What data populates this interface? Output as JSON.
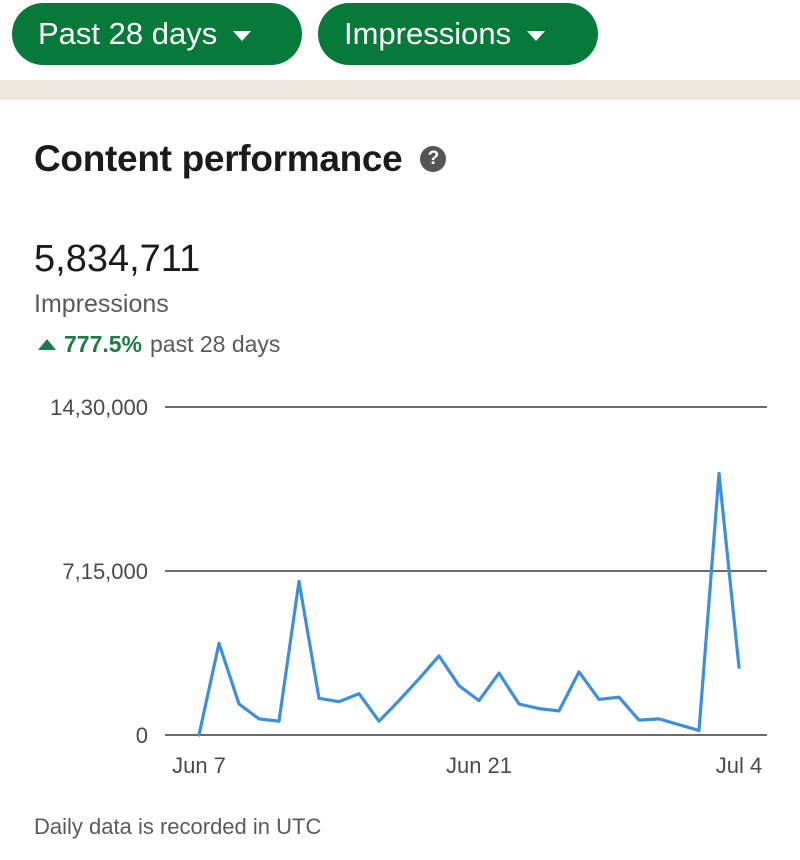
{
  "filters": {
    "range_label": "Past 28 days",
    "metric_label": "Impressions"
  },
  "colors": {
    "accent_green": "#077a3a",
    "line_blue": "#3d8fdc",
    "divider_band": "#ece6df",
    "positive_green": "#1b7b45"
  },
  "section": {
    "title": "Content performance",
    "help_icon_glyph": "?"
  },
  "summary": {
    "total": "5,834,711",
    "metric": "Impressions",
    "change_value": "777.5%",
    "change_period": "past 28 days"
  },
  "chart_data": {
    "type": "line",
    "ylim": [
      0,
      1430000
    ],
    "yticks": [
      {
        "value": 1430000,
        "label": "14,30,000"
      },
      {
        "value": 715000,
        "label": "7,15,000"
      },
      {
        "value": 0,
        "label": "0"
      }
    ],
    "xticks": [
      {
        "index": 0,
        "label": "Jun 7"
      },
      {
        "index": 14,
        "label": "Jun 21"
      },
      {
        "index": 27,
        "label": "Jul 4"
      }
    ],
    "x": [
      "Jun 7",
      "Jun 8",
      "Jun 9",
      "Jun 10",
      "Jun 11",
      "Jun 12",
      "Jun 13",
      "Jun 14",
      "Jun 15",
      "Jun 16",
      "Jun 17",
      "Jun 18",
      "Jun 19",
      "Jun 20",
      "Jun 21",
      "Jun 22",
      "Jun 23",
      "Jun 24",
      "Jun 25",
      "Jun 26",
      "Jun 27",
      "Jun 28",
      "Jun 29",
      "Jun 30",
      "Jul 1",
      "Jul 2",
      "Jul 3",
      "Jul 4"
    ],
    "series": [
      {
        "values": [
          0,
          400000,
          135000,
          70000,
          60000,
          670000,
          160000,
          145000,
          180000,
          60000,
          150000,
          245000,
          345000,
          215000,
          150000,
          270000,
          135000,
          115000,
          105000,
          275000,
          155000,
          165000,
          65000,
          70000,
          45000,
          20000,
          1140000,
          295000
        ]
      }
    ],
    "grid": "horizontal",
    "legend": "none"
  },
  "footer": {
    "note": "Daily data is recorded in UTC"
  }
}
